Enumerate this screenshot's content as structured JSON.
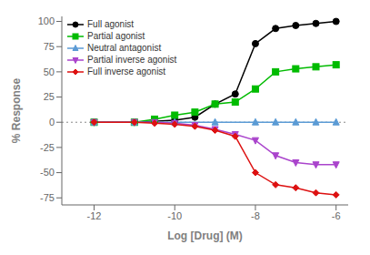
{
  "chart_data": {
    "type": "line",
    "xlabel": "Log [Drug] (M)",
    "ylabel": "% Response",
    "xlim": [
      -12.8,
      -5.7
    ],
    "ylim": [
      -82,
      105
    ],
    "xticks": [
      -12,
      -10,
      -8,
      -6
    ],
    "yticks": [
      -75,
      -50,
      -25,
      0,
      25,
      50,
      75,
      100
    ],
    "hline": 0,
    "legend": "upper left",
    "series": [
      {
        "name": "Full agonist",
        "color": "#000000",
        "marker": "circle",
        "x": [
          -12,
          -11,
          -10,
          -9.5,
          -9,
          -8.5,
          -8,
          -7.5,
          -7,
          -6.5,
          -6
        ],
        "values": [
          0,
          0,
          2,
          5,
          18,
          28,
          78,
          93,
          96,
          98,
          100
        ]
      },
      {
        "name": "Partial agonist",
        "color": "#00bb00",
        "marker": "square",
        "x": [
          -12,
          -11,
          -10.5,
          -10,
          -9.5,
          -9,
          -8.5,
          -8,
          -7.5,
          -7,
          -6.5,
          -6
        ],
        "values": [
          0,
          0,
          3,
          7,
          10,
          18,
          20,
          33,
          50,
          53,
          55,
          57
        ]
      },
      {
        "name": "Neutral antagonist",
        "color": "#5b9bd5",
        "marker": "triangle-up",
        "x": [
          -12,
          -11,
          -10,
          -9,
          -8,
          -7.5,
          -7,
          -6.5,
          -6
        ],
        "values": [
          0,
          0,
          0,
          0,
          0,
          0,
          0,
          0,
          0
        ]
      },
      {
        "name": "Partial inverse agonist",
        "color": "#aa44cc",
        "marker": "triangle-down",
        "x": [
          -12,
          -11,
          -10.5,
          -10,
          -9.5,
          -9,
          -8.5,
          -8,
          -7.5,
          -7,
          -6.5,
          -6
        ],
        "values": [
          0,
          0,
          0,
          -1,
          -3,
          -7,
          -12,
          -18,
          -33,
          -40,
          -42,
          -42
        ]
      },
      {
        "name": "Full inverse agonist",
        "color": "#dd1111",
        "marker": "diamond",
        "x": [
          -12,
          -11,
          -10.5,
          -10,
          -9.5,
          -9,
          -8.5,
          -8,
          -7.5,
          -7,
          -6.5,
          -6
        ],
        "values": [
          0,
          0,
          -1,
          -2,
          -4,
          -8,
          -14,
          -50,
          -62,
          -65,
          -70,
          -72
        ]
      }
    ]
  }
}
